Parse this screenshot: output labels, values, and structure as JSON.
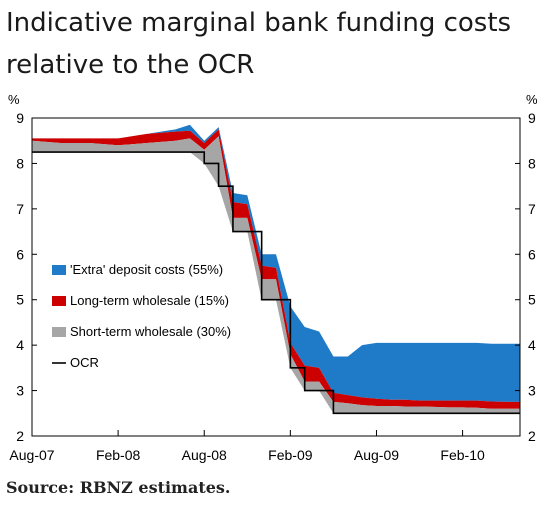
{
  "title": "Indicative marginal bank funding costs relative to the OCR",
  "source": "Source: RBNZ estimates.",
  "chart_data": {
    "type": "area",
    "y_unit": "%",
    "ylim": [
      2,
      9
    ],
    "y_ticks": [
      2,
      3,
      4,
      5,
      6,
      7,
      8,
      9
    ],
    "x_range": [
      "2007-08",
      "2010-06"
    ],
    "x_ticks": [
      {
        "value": "2007-08",
        "label": "Aug-07"
      },
      {
        "value": "2008-02",
        "label": "Feb-08"
      },
      {
        "value": "2008-08",
        "label": "Aug-08"
      },
      {
        "value": "2009-02",
        "label": "Feb-09"
      },
      {
        "value": "2009-08",
        "label": "Aug-09"
      },
      {
        "value": "2010-02",
        "label": "Feb-10"
      }
    ],
    "grid": false,
    "legend_placement": "left",
    "x": [
      "2007-08",
      "2007-10",
      "2007-12",
      "2008-02",
      "2008-04",
      "2008-06",
      "2008-07",
      "2008-08",
      "2008-09",
      "2008-10",
      "2008-11",
      "2008-12",
      "2009-01",
      "2009-02",
      "2009-03",
      "2009-04",
      "2009-05",
      "2009-06",
      "2009-07",
      "2009-08",
      "2009-09",
      "2009-10",
      "2009-11",
      "2009-12",
      "2010-01",
      "2010-02",
      "2010-03",
      "2010-04",
      "2010-05",
      "2010-06"
    ],
    "ocr": [
      8.25,
      8.25,
      8.25,
      8.25,
      8.25,
      8.25,
      8.25,
      8.0,
      7.5,
      6.5,
      6.5,
      5.0,
      5.0,
      3.5,
      3.0,
      3.0,
      2.5,
      2.5,
      2.5,
      2.5,
      2.5,
      2.5,
      2.5,
      2.5,
      2.5,
      2.5,
      2.5,
      2.5,
      2.5,
      2.5
    ],
    "series": [
      {
        "name": "Short-term wholesale (30%)",
        "color": "#a6a6a6",
        "values": [
          8.5,
          8.45,
          8.45,
          8.4,
          8.45,
          8.5,
          8.55,
          8.3,
          8.6,
          6.8,
          6.8,
          5.45,
          5.45,
          3.8,
          3.2,
          3.2,
          2.75,
          2.72,
          2.68,
          2.66,
          2.66,
          2.65,
          2.65,
          2.64,
          2.63,
          2.63,
          2.62,
          2.6,
          2.6,
          2.6
        ]
      },
      {
        "name": "Long-term wholesale (15%)",
        "color": "#cc0000",
        "values": [
          8.55,
          8.55,
          8.55,
          8.55,
          8.65,
          8.7,
          8.72,
          8.45,
          8.75,
          7.15,
          7.1,
          5.75,
          5.7,
          4.05,
          3.55,
          3.5,
          2.95,
          2.9,
          2.85,
          2.82,
          2.8,
          2.8,
          2.78,
          2.78,
          2.78,
          2.78,
          2.78,
          2.76,
          2.75,
          2.75
        ]
      },
      {
        "name": "'Extra' deposit costs (55%)",
        "color": "#1f7ac8",
        "values": [
          8.55,
          8.55,
          8.55,
          8.55,
          8.65,
          8.75,
          8.85,
          8.5,
          8.8,
          7.35,
          7.3,
          6.0,
          6.0,
          4.85,
          4.4,
          4.3,
          3.75,
          3.75,
          4.0,
          4.05,
          4.05,
          4.05,
          4.05,
          4.05,
          4.05,
          4.05,
          4.05,
          4.03,
          4.03,
          4.03
        ]
      }
    ],
    "ocr_label": "OCR"
  }
}
